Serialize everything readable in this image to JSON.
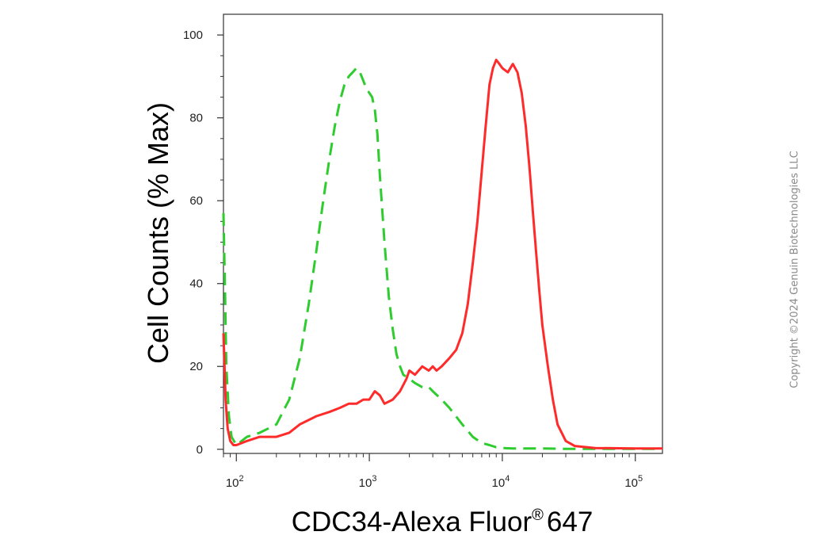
{
  "copyright": "Copyright ©2024 Genuin Biotechnologies LLC",
  "chart_data": {
    "type": "line",
    "title": "",
    "xlabel": "CDC34-Alexa Fluor",
    "xlabel_superscript": "®",
    "xlabel_suffix": "647",
    "ylabel": "Cell Counts (% Max)",
    "x_scale": "log",
    "xlim": [
      80,
      160000
    ],
    "ylim": [
      -1,
      105
    ],
    "y_ticks": [
      0,
      20,
      40,
      60,
      80,
      100
    ],
    "x_ticks": [
      {
        "value": 100,
        "base": "10",
        "exp": "2"
      },
      {
        "value": 1000,
        "base": "10",
        "exp": "3"
      },
      {
        "value": 10000,
        "base": "10",
        "exp": "4"
      },
      {
        "value": 100000,
        "base": "10",
        "exp": "5"
      }
    ],
    "grid": false,
    "series": [
      {
        "color": "#2ecc2e",
        "style": "dashed",
        "x": [
          80,
          82,
          84,
          88,
          92,
          100,
          120,
          150,
          200,
          250,
          300,
          350,
          400,
          450,
          500,
          550,
          600,
          650,
          700,
          750,
          800,
          850,
          900,
          950,
          1000,
          1050,
          1100,
          1150,
          1200,
          1300,
          1400,
          1500,
          1600,
          1700,
          1800,
          2000,
          2200,
          2500,
          2800,
          3000,
          3500,
          4000,
          5000,
          6000,
          7000,
          8000,
          9000,
          10000,
          12000,
          15000,
          20000,
          30000,
          50000,
          100000,
          160000
        ],
        "y": [
          57,
          40,
          20,
          8,
          3,
          1,
          3,
          4,
          6,
          12,
          22,
          35,
          48,
          60,
          70,
          78,
          84,
          88,
          90,
          91,
          92,
          91,
          89,
          87,
          86,
          85,
          82,
          76,
          66,
          50,
          37,
          29,
          23,
          20,
          18,
          17,
          16,
          15,
          15,
          14,
          12,
          10,
          6,
          3,
          1.5,
          1,
          0.5,
          0.3,
          0.2,
          0.2,
          0.2,
          0.1,
          0.1,
          0.1,
          0.1
        ]
      },
      {
        "color": "#ff2a2a",
        "style": "solid",
        "x": [
          80,
          83,
          86,
          90,
          95,
          100,
          120,
          150,
          180,
          200,
          250,
          300,
          400,
          500,
          600,
          700,
          800,
          900,
          1000,
          1100,
          1200,
          1300,
          1500,
          1700,
          1900,
          2000,
          2200,
          2500,
          2800,
          3000,
          3200,
          3500,
          4000,
          4500,
          5000,
          5500,
          6000,
          6500,
          7000,
          7500,
          8000,
          8500,
          9000,
          9500,
          10000,
          11000,
          12000,
          13000,
          14000,
          15000,
          16000,
          17000,
          18000,
          19000,
          20000,
          22000,
          24000,
          26000,
          30000,
          35000,
          50000,
          100000,
          160000
        ],
        "y": [
          28,
          12,
          5,
          2,
          1,
          1,
          2,
          3,
          3,
          3,
          4,
          6,
          8,
          9,
          10,
          11,
          11,
          12,
          12,
          14,
          13,
          11,
          12,
          14,
          17,
          19,
          18,
          20,
          19,
          20,
          19,
          20,
          22,
          24,
          28,
          35,
          45,
          55,
          67,
          78,
          88,
          92,
          94,
          93,
          92,
          91,
          93,
          91,
          86,
          78,
          68,
          57,
          47,
          38,
          30,
          20,
          12,
          6,
          2,
          0.8,
          0.3,
          0.2,
          0.2
        ]
      }
    ]
  }
}
